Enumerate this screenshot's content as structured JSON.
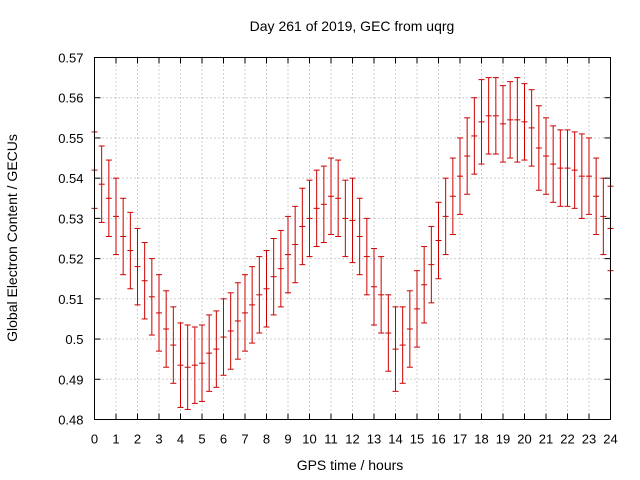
{
  "chart_data": {
    "type": "scatter",
    "title": "Day 261 of 2019, GEC from uqrg",
    "xlabel": "GPS time / hours",
    "ylabel": "Global Electron Content / GECUs",
    "xlim": [
      0,
      24
    ],
    "ylim": [
      0.48,
      0.57
    ],
    "xticks": [
      "0",
      "1",
      "2",
      "3",
      "4",
      "5",
      "6",
      "7",
      "8",
      "9",
      "10",
      "11",
      "12",
      "13",
      "14",
      "15",
      "16",
      "17",
      "18",
      "19",
      "20",
      "21",
      "22",
      "23",
      "24"
    ],
    "yticks": [
      "0.48",
      "0.49",
      "0.5",
      "0.51",
      "0.52",
      "0.53",
      "0.54",
      "0.55",
      "0.56",
      "0.57"
    ],
    "grid": true,
    "color": "#cc0000",
    "series": [
      {
        "name": "GEC",
        "x": [
          0,
          0.333,
          0.667,
          1,
          1.333,
          1.667,
          2,
          2.333,
          2.667,
          3,
          3.333,
          3.667,
          4,
          4.333,
          4.667,
          5,
          5.333,
          5.667,
          6,
          6.333,
          6.667,
          7,
          7.333,
          7.667,
          8,
          8.333,
          8.667,
          9,
          9.333,
          9.667,
          10,
          10.333,
          10.667,
          11,
          11.333,
          11.667,
          12,
          12.333,
          12.667,
          13,
          13.333,
          13.667,
          14,
          14.333,
          14.667,
          15,
          15.333,
          15.667,
          16,
          16.333,
          16.667,
          17,
          17.333,
          17.667,
          18,
          18.333,
          18.667,
          19,
          19.333,
          19.667,
          20,
          20.333,
          20.667,
          21,
          21.333,
          21.667,
          22,
          22.333,
          22.667,
          23,
          23.333,
          23.667,
          24
        ],
        "values": [
          0.542,
          0.5385,
          0.535,
          0.5305,
          0.5255,
          0.522,
          0.518,
          0.5145,
          0.5105,
          0.5065,
          0.5025,
          0.4985,
          0.4935,
          0.493,
          0.4935,
          0.494,
          0.4965,
          0.4975,
          0.5005,
          0.502,
          0.5045,
          0.5065,
          0.5085,
          0.511,
          0.5125,
          0.5155,
          0.5175,
          0.521,
          0.5235,
          0.528,
          0.53,
          0.5325,
          0.5335,
          0.5355,
          0.535,
          0.53,
          0.5295,
          0.5255,
          0.5205,
          0.513,
          0.511,
          0.5015,
          0.4975,
          0.4985,
          0.5025,
          0.5075,
          0.5135,
          0.5185,
          0.5245,
          0.5305,
          0.5355,
          0.5405,
          0.5455,
          0.5505,
          0.554,
          0.5555,
          0.5555,
          0.5535,
          0.5545,
          0.5545,
          0.554,
          0.5525,
          0.5475,
          0.5455,
          0.5435,
          0.5425,
          0.5425,
          0.542,
          0.5405,
          0.5405,
          0.5355,
          0.5305,
          0.5275
        ],
        "errors": [
          0.0095,
          0.0095,
          0.0095,
          0.0095,
          0.0095,
          0.0095,
          0.0095,
          0.0095,
          0.0095,
          0.0095,
          0.0095,
          0.0095,
          0.0105,
          0.0105,
          0.0095,
          0.0095,
          0.0095,
          0.0095,
          0.0095,
          0.0095,
          0.0095,
          0.0095,
          0.0095,
          0.0095,
          0.0095,
          0.0095,
          0.0095,
          0.0095,
          0.0095,
          0.0095,
          0.0095,
          0.0095,
          0.0095,
          0.0095,
          0.0095,
          0.0095,
          0.0105,
          0.0095,
          0.0095,
          0.0095,
          0.0095,
          0.0095,
          0.0105,
          0.0095,
          0.0095,
          0.0095,
          0.0095,
          0.0095,
          0.0095,
          0.0095,
          0.0095,
          0.0095,
          0.0095,
          0.0095,
          0.0105,
          0.0095,
          0.0095,
          0.0095,
          0.0095,
          0.0105,
          0.0095,
          0.0095,
          0.0105,
          0.0095,
          0.0095,
          0.0095,
          0.0095,
          0.0095,
          0.0105,
          0.0095,
          0.0095,
          0.0095,
          0.0105
        ]
      }
    ]
  }
}
